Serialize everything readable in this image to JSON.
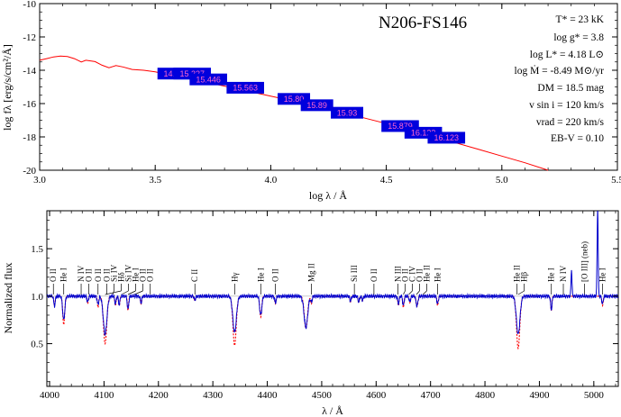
{
  "title": "N206-FS146",
  "parameters": [
    "T* = 23 kK",
    "log g* = 3.8",
    "log L* = 4.18 L⊙",
    "log Ṁ = -8.49 M⊙/yr",
    "DM = 18.5 mag",
    "v sin i = 120 km/s",
    "vrad = 220 km/s",
    "EB-V = 0.10"
  ],
  "colors": {
    "model": "#ff0000",
    "observed": "#0000cc",
    "photometry_box": "#0000dd",
    "photometry_text": "#ff66cc"
  },
  "chart_data": [
    {
      "type": "line",
      "panel": "sed",
      "xlabel": "log λ / Å",
      "ylabel": "log fλ [erg/s/cm²/Å]",
      "xlim": [
        3.0,
        5.5
      ],
      "ylim": [
        -20,
        -10
      ],
      "xticks": [
        "3.0",
        "3.5",
        "4.0",
        "4.5",
        "5.0",
        "5.5"
      ],
      "yticks": [
        "-20",
        "-18",
        "-16",
        "-14",
        "-12",
        "-10"
      ],
      "series": [
        {
          "role": "model",
          "x": [
            3.0,
            3.03,
            3.06,
            3.09,
            3.12,
            3.15,
            3.18,
            3.2,
            3.24,
            3.27,
            3.3,
            3.33,
            3.36,
            3.4,
            3.45,
            3.5,
            3.55,
            3.6,
            3.65,
            3.7,
            3.8,
            3.9,
            4.0,
            4.1,
            4.2,
            4.3,
            4.4,
            4.5,
            4.6,
            4.7,
            4.8,
            4.9,
            5.0,
            5.1,
            5.2
          ],
          "y": [
            -13.4,
            -13.3,
            -13.2,
            -13.15,
            -13.18,
            -13.3,
            -13.5,
            -13.4,
            -13.48,
            -13.7,
            -13.85,
            -13.72,
            -13.8,
            -13.95,
            -14.0,
            -14.1,
            -14.25,
            -14.35,
            -14.5,
            -14.65,
            -14.95,
            -15.25,
            -15.55,
            -15.85,
            -16.15,
            -16.5,
            -16.85,
            -17.2,
            -17.55,
            -17.95,
            -18.35,
            -18.75,
            -19.15,
            -19.55,
            -20.0
          ]
        }
      ],
      "photometry": [
        {
          "label": "14.48",
          "x": 3.58,
          "y": -14.2
        },
        {
          "label": "15.227",
          "x": 3.66,
          "y": -14.2
        },
        {
          "label": "15.446",
          "x": 3.73,
          "y": -14.55
        },
        {
          "label": "15.563",
          "x": 3.89,
          "y": -15.05
        },
        {
          "label": "15.80",
          "x": 4.1,
          "y": -15.72
        },
        {
          "label": "15.89",
          "x": 4.2,
          "y": -16.1
        },
        {
          "label": "15.93",
          "x": 4.33,
          "y": -16.55
        },
        {
          "label": "15.879",
          "x": 4.56,
          "y": -17.35
        },
        {
          "label": "16.123",
          "x": 4.66,
          "y": -17.75
        },
        {
          "label": "16.123",
          "x": 4.76,
          "y": -18.05
        }
      ]
    },
    {
      "type": "line",
      "panel": "normalized-spectrum",
      "xlabel": "λ / Å",
      "ylabel": "Normalized flux",
      "xlim": [
        3995,
        5045
      ],
      "ylim": [
        0.05,
        1.9
      ],
      "xticks": [
        "4000",
        "4100",
        "4200",
        "4300",
        "4400",
        "4500",
        "4600",
        "4700",
        "4800",
        "4900",
        "5000"
      ],
      "yticks": [
        "0.5",
        "1.0",
        "1.5"
      ],
      "continuum": 1.0,
      "lines": [
        {
          "w": 4009,
          "dm": 0.1,
          "do": 0.1
        },
        {
          "w": 4026,
          "dm": 0.3,
          "do": 0.25
        },
        {
          "w": 4070,
          "dm": 0.08,
          "do": 0.06
        },
        {
          "w": 4089,
          "dm": 0.12,
          "do": 0.09
        },
        {
          "w": 4102,
          "dm": 0.5,
          "do": 0.4
        },
        {
          "w": 4121,
          "dm": 0.1,
          "do": 0.08
        },
        {
          "w": 4128,
          "dm": 0.1,
          "do": 0.09
        },
        {
          "w": 4144,
          "dm": 0.15,
          "do": 0.14
        },
        {
          "w": 4168,
          "dm": 0.08,
          "do": 0.07
        },
        {
          "w": 4267,
          "dm": 0.05,
          "do": 0.04
        },
        {
          "w": 4340,
          "dm": 0.52,
          "do": 0.38
        },
        {
          "w": 4388,
          "dm": 0.22,
          "do": 0.2
        },
        {
          "w": 4415,
          "dm": 0.08,
          "do": 0.07
        },
        {
          "w": 4471,
          "dm": 0.34,
          "do": 0.33
        },
        {
          "w": 4481,
          "dm": 0.08,
          "do": 0.06
        },
        {
          "w": 4553,
          "dm": 0.06,
          "do": 0.05
        },
        {
          "w": 4568,
          "dm": 0.07,
          "do": 0.06
        },
        {
          "w": 4575,
          "dm": 0.05,
          "do": 0.04
        },
        {
          "w": 4641,
          "dm": 0.1,
          "do": 0.08
        },
        {
          "w": 4650,
          "dm": 0.12,
          "do": 0.1
        },
        {
          "w": 4662,
          "dm": 0.07,
          "do": 0.06
        },
        {
          "w": 4674,
          "dm": 0.07,
          "do": 0.06
        },
        {
          "w": 4676,
          "dm": 0.08,
          "do": 0.07
        },
        {
          "w": 4713,
          "dm": 0.1,
          "do": 0.08
        },
        {
          "w": 4861,
          "dm": 0.55,
          "do": 0.4
        },
        {
          "w": 4922,
          "dm": 0.15,
          "do": 0.14
        },
        {
          "w": 5016,
          "dm": 0.1,
          "do": 0.08
        }
      ],
      "emission": [
        {
          "w": 4959,
          "peak": 1.28
        },
        {
          "w": 5007,
          "peak": 1.95
        }
      ],
      "line_ids": [
        {
          "label": "O II",
          "w": 4007
        },
        {
          "label": "He I",
          "w": 4026
        },
        {
          "label": "N IV",
          "w": 4058
        },
        {
          "label": "O II",
          "w": 4072
        },
        {
          "label": "O II",
          "w": 4089
        },
        {
          "label": "O II",
          "w": 4105
        },
        {
          "label": "Si IV",
          "w": 4116
        },
        {
          "label": "Hδ",
          "w": 4102
        },
        {
          "label": "Si IV",
          "w": 4132
        },
        {
          "label": "He I",
          "w": 4144
        },
        {
          "label": "O II",
          "w": 4156
        },
        {
          "label": "O II",
          "w": 4185
        },
        {
          "label": "C II",
          "w": 4267
        },
        {
          "label": "Hγ",
          "w": 4340
        },
        {
          "label": "He I",
          "w": 4388
        },
        {
          "label": "O II",
          "w": 4415
        },
        {
          "label": "Mg II",
          "w": 4481
        },
        {
          "label": "Si III",
          "w": 4560
        },
        {
          "label": "O II",
          "w": 4596
        },
        {
          "label": "N III",
          "w": 4640
        },
        {
          "label": "O II",
          "w": 4650
        },
        {
          "label": "C IV",
          "w": 4660
        },
        {
          "label": "O II",
          "w": 4674
        },
        {
          "label": "He II",
          "w": 4686
        },
        {
          "label": "He I",
          "w": 4713
        },
        {
          "label": "He II",
          "w": 4859
        },
        {
          "label": "Hβ",
          "w": 4861
        },
        {
          "label": "He I",
          "w": 4922
        },
        {
          "label": "N IV",
          "w": 4944
        },
        {
          "label": "[O III] (neb)",
          "w": 4983
        },
        {
          "label": "He I",
          "w": 5016
        }
      ]
    }
  ]
}
